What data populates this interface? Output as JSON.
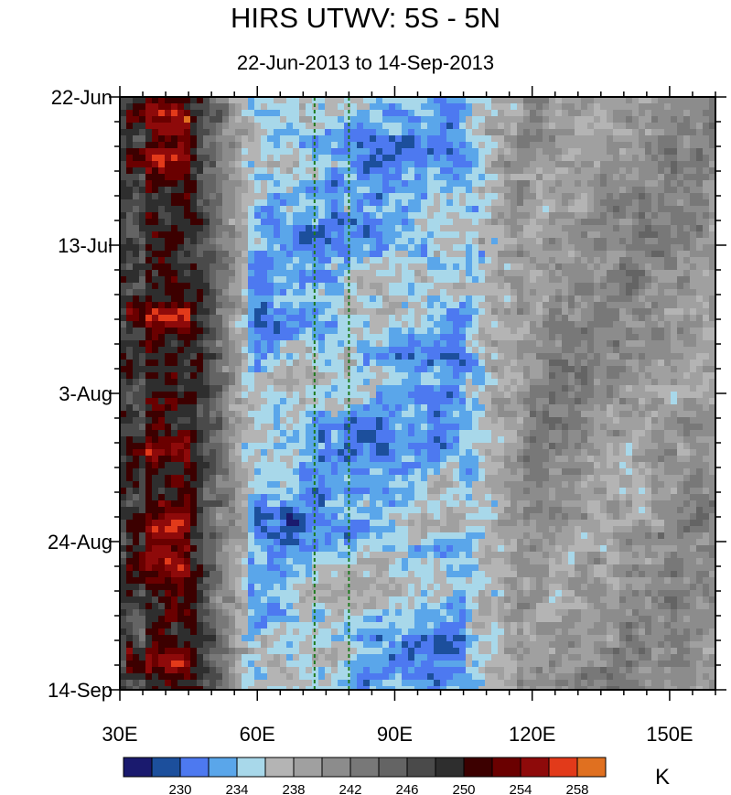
{
  "chart_data": {
    "type": "heatmap",
    "title": "HIRS UTWV: 5S - 5N",
    "subtitle": "22-Jun-2013 to 14-Sep-2013",
    "xlabel": "",
    "ylabel": "",
    "x_ticks": [
      {
        "value": 30,
        "label": "30E"
      },
      {
        "value": 60,
        "label": "60E"
      },
      {
        "value": 90,
        "label": "90E"
      },
      {
        "value": 120,
        "label": "120E"
      },
      {
        "value": 150,
        "label": "150E"
      }
    ],
    "xlim": [
      30,
      160
    ],
    "y_ticks": [
      {
        "value": 0,
        "label": "22-Jun"
      },
      {
        "value": 21,
        "label": "13-Jul"
      },
      {
        "value": 42,
        "label": "3-Aug"
      },
      {
        "value": 63,
        "label": "24-Aug"
      },
      {
        "value": 84,
        "label": "14-Sep"
      }
    ],
    "ylim_days": [
      0,
      84
    ],
    "reference_lines_lon": [
      72.5,
      80
    ],
    "colorbar": {
      "levels": [
        228,
        230,
        232,
        234,
        236,
        238,
        240,
        242,
        244,
        246,
        248,
        250,
        252,
        254,
        256,
        258,
        260
      ],
      "labels": [
        "230",
        "234",
        "238",
        "242",
        "246",
        "250",
        "254",
        "258"
      ],
      "colors": [
        "#1a1a6e",
        "#1c4f9c",
        "#4d79f0",
        "#5aa6ea",
        "#a8d8ea",
        "#b4b4b4",
        "#a0a0a0",
        "#8c8c8c",
        "#787878",
        "#646464",
        "#4a4a4a",
        "#2e2e2e",
        "#3c0000",
        "#6a0000",
        "#8e0a0a",
        "#e23a1a",
        "#e07020"
      ],
      "units": "K"
    },
    "description_bands": [
      {
        "lon_range": [
          30,
          47
        ],
        "level_range": [
          246,
          258
        ],
        "note": "dry band, dark grey to dark red"
      },
      {
        "lon_range": [
          55,
          110
        ],
        "level_range": [
          230,
          238
        ],
        "note": "moist band, blues"
      },
      {
        "lon_range": [
          110,
          160
        ],
        "level_range": [
          238,
          250
        ],
        "note": "intermediate greys"
      }
    ]
  }
}
